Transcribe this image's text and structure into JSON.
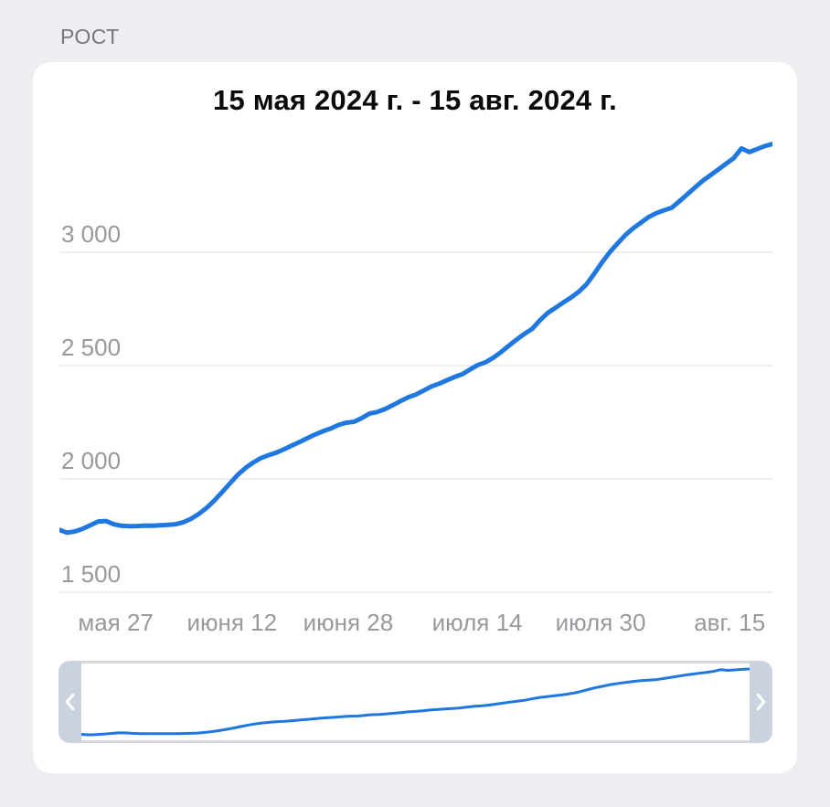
{
  "section_label": "РОСТ",
  "chart_data": {
    "type": "line",
    "title": "15 мая 2024 г. - 15 авг. 2024 г.",
    "line_color": "#1e78e0",
    "grid_color": "#dcdcde",
    "axis_text_color": "#98989d",
    "grid": true,
    "legend": "none",
    "x_start": "15 мая 2024",
    "x_end": "15 авг. 2024",
    "x_unit": "day",
    "y_ticks": [
      {
        "value": 3000,
        "label": "3 000"
      },
      {
        "value": 2500,
        "label": "2 500"
      },
      {
        "value": 2000,
        "label": "2 000"
      },
      {
        "value": 1500,
        "label": "1 500"
      }
    ],
    "x_ticks": [
      {
        "label": "мая 27",
        "pos_pct": 7.9
      },
      {
        "label": "июня 12",
        "pos_pct": 24.2
      },
      {
        "label": "июня 28",
        "pos_pct": 40.5
      },
      {
        "label": "июля 14",
        "pos_pct": 58.6
      },
      {
        "label": "июля 30",
        "pos_pct": 75.9
      },
      {
        "label": "авг. 15",
        "pos_pct": 94.0
      }
    ],
    "ylim": [
      1500,
      3550
    ],
    "values": [
      1775,
      1763,
      1768,
      1780,
      1796,
      1812,
      1814,
      1800,
      1793,
      1791,
      1792,
      1794,
      1793,
      1795,
      1797,
      1800,
      1809,
      1824,
      1846,
      1872,
      1905,
      1942,
      1980,
      2018,
      2048,
      2072,
      2092,
      2105,
      2116,
      2131,
      2147,
      2163,
      2180,
      2196,
      2210,
      2222,
      2238,
      2248,
      2252,
      2268,
      2288,
      2295,
      2308,
      2325,
      2343,
      2360,
      2372,
      2390,
      2408,
      2420,
      2435,
      2450,
      2462,
      2483,
      2503,
      2515,
      2535,
      2560,
      2588,
      2615,
      2640,
      2662,
      2700,
      2732,
      2755,
      2778,
      2800,
      2825,
      2858,
      2905,
      2955,
      3000,
      3038,
      3075,
      3105,
      3130,
      3155,
      3172,
      3185,
      3196,
      3225,
      3255,
      3285,
      3315,
      3340,
      3365,
      3390,
      3415,
      3458,
      3442,
      3455,
      3468,
      3478
    ]
  },
  "minimap": {
    "left_icon": "chevron-left",
    "right_icon": "chevron-right",
    "frame_color": "#c9d2dd"
  }
}
